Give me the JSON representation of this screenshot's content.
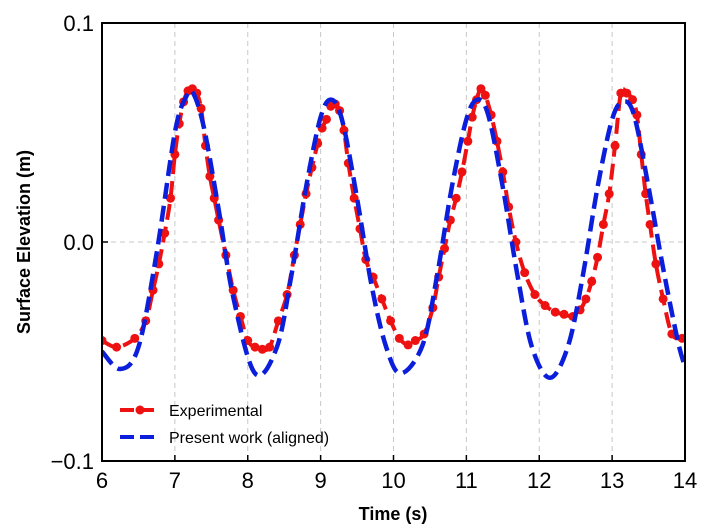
{
  "chart_data": {
    "type": "line",
    "title": "",
    "xlabel": "Time (s)",
    "ylabel": "Surface Elevation (m)",
    "xlim": [
      6,
      14
    ],
    "ylim": [
      -0.1,
      0.1
    ],
    "x_ticks": [
      6,
      7,
      8,
      9,
      10,
      11,
      12,
      13,
      14
    ],
    "y_ticks": [
      -0.1,
      0.0,
      0.1
    ],
    "x_tick_labels": [
      "6",
      "7",
      "8",
      "9",
      "10",
      "11",
      "12",
      "13",
      "14"
    ],
    "y_tick_labels": [
      "−0.1",
      "0.0",
      "0.1"
    ],
    "grid": true,
    "legend_position": "lower-left",
    "series": [
      {
        "name": "Experimental",
        "color": "#ee1111",
        "style": "dashed-with-circle-markers",
        "x": [
          6.0,
          6.2,
          6.45,
          6.6,
          6.7,
          6.78,
          6.86,
          6.94,
          7.0,
          7.06,
          7.12,
          7.18,
          7.24,
          7.3,
          7.36,
          7.42,
          7.48,
          7.54,
          7.6,
          7.7,
          7.8,
          7.9,
          8.0,
          8.1,
          8.2,
          8.3,
          8.42,
          8.54,
          8.64,
          8.72,
          8.8,
          8.88,
          8.96,
          9.02,
          9.08,
          9.14,
          9.2,
          9.26,
          9.32,
          9.38,
          9.46,
          9.54,
          9.62,
          9.72,
          9.84,
          9.96,
          10.08,
          10.2,
          10.3,
          10.42,
          10.54,
          10.62,
          10.7,
          10.78,
          10.86,
          10.94,
          11.02,
          11.08,
          11.14,
          11.2,
          11.26,
          11.34,
          11.42,
          11.5,
          11.58,
          11.68,
          11.8,
          11.94,
          12.08,
          12.22,
          12.34,
          12.46,
          12.56,
          12.64,
          12.72,
          12.8,
          12.88,
          12.96,
          13.04,
          13.12,
          13.2,
          13.28,
          13.34,
          13.4,
          13.46,
          13.52,
          13.6,
          13.7,
          13.82,
          13.96
        ],
        "y": [
          -0.045,
          -0.048,
          -0.044,
          -0.036,
          -0.022,
          -0.01,
          0.004,
          0.02,
          0.04,
          0.054,
          0.064,
          0.069,
          0.07,
          0.068,
          0.061,
          0.044,
          0.03,
          0.02,
          0.01,
          -0.006,
          -0.022,
          -0.034,
          -0.045,
          -0.048,
          -0.049,
          -0.048,
          -0.036,
          -0.024,
          -0.006,
          0.008,
          0.022,
          0.034,
          0.045,
          0.052,
          0.056,
          0.062,
          0.063,
          0.06,
          0.051,
          0.036,
          0.02,
          0.006,
          -0.008,
          -0.016,
          -0.026,
          -0.036,
          -0.044,
          -0.047,
          -0.045,
          -0.042,
          -0.03,
          -0.016,
          -0.003,
          0.01,
          0.02,
          0.032,
          0.046,
          0.057,
          0.065,
          0.07,
          0.067,
          0.058,
          0.046,
          0.032,
          0.016,
          0.0,
          -0.014,
          -0.024,
          -0.029,
          -0.032,
          -0.033,
          -0.034,
          -0.031,
          -0.026,
          -0.018,
          -0.007,
          0.008,
          0.022,
          0.044,
          0.068,
          0.068,
          0.065,
          0.058,
          0.04,
          0.022,
          0.008,
          -0.01,
          -0.026,
          -0.042,
          -0.044
        ]
      },
      {
        "name": "Present work (aligned)",
        "color": "#0a1edc",
        "style": "dashed",
        "x": [
          6.0,
          6.25,
          6.5,
          6.75,
          7.0,
          7.15,
          7.25,
          7.4,
          7.6,
          7.8,
          8.1,
          8.4,
          8.6,
          8.8,
          9.0,
          9.15,
          9.3,
          9.5,
          9.7,
          9.9,
          10.1,
          10.4,
          10.6,
          10.8,
          11.0,
          11.15,
          11.3,
          11.5,
          11.7,
          11.9,
          12.15,
          12.4,
          12.6,
          12.8,
          13.0,
          13.15,
          13.3,
          13.5,
          13.7,
          13.9,
          14.0
        ],
        "y": [
          -0.05,
          -0.058,
          -0.048,
          -0.005,
          0.05,
          0.066,
          0.068,
          0.052,
          0.015,
          -0.025,
          -0.06,
          -0.048,
          -0.015,
          0.025,
          0.057,
          0.065,
          0.055,
          0.02,
          -0.02,
          -0.048,
          -0.06,
          -0.047,
          -0.015,
          0.025,
          0.056,
          0.065,
          0.058,
          0.025,
          -0.015,
          -0.048,
          -0.062,
          -0.047,
          -0.015,
          0.025,
          0.056,
          0.064,
          0.058,
          0.025,
          -0.012,
          -0.045,
          -0.057
        ]
      }
    ]
  }
}
